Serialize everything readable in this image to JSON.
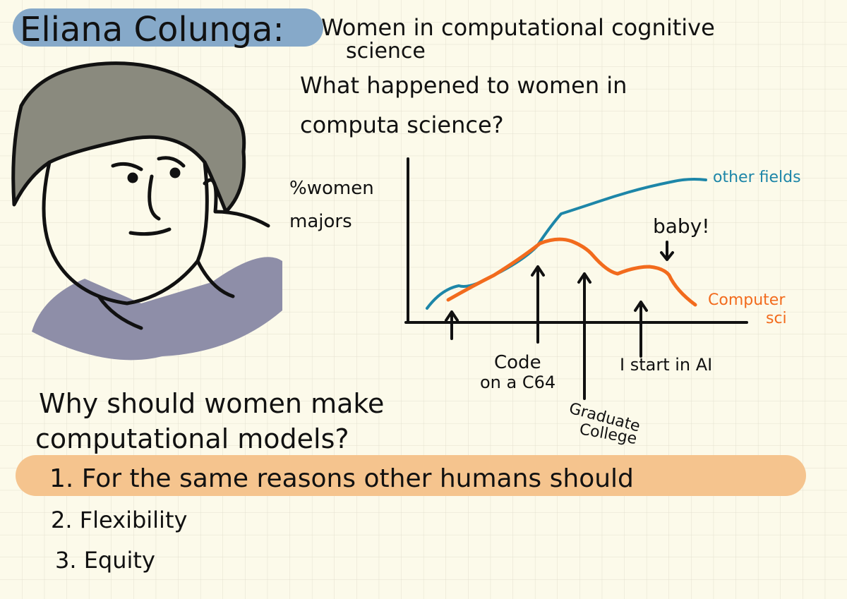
{
  "header": {
    "name": "Eliana Colunga:",
    "topic": [
      "Women in computational cognitive",
      "science"
    ]
  },
  "question": [
    "What happened to women in",
    "computa science?"
  ],
  "sketch_chart": {
    "y_label": [
      "%women",
      "majors"
    ],
    "other_fields": "other fields",
    "computer_sci": [
      "Computer",
      "sci"
    ],
    "baby": "baby!",
    "events": [
      [
        "Code",
        "on a C64"
      ],
      [
        "Graduate",
        "College"
      ],
      [
        "I start in AI"
      ]
    ]
  },
  "why": [
    "Why should women make",
    "computational models?"
  ],
  "reasons": [
    "1. For the same reasons other humans should",
    "2. Flexibility",
    "3. Equity"
  ]
}
